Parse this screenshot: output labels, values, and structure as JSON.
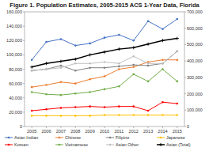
{
  "chart_data": {
    "type": "line",
    "title": "Figure 1. Population Estimates, 2005-2015 ACS 1-Year Data, Florida",
    "x": [
      2005,
      2006,
      2007,
      2008,
      2009,
      2010,
      2011,
      2012,
      2013,
      2014,
      2015
    ],
    "xlim": [
      2004.5,
      2015.5
    ],
    "xticks": [
      2005,
      2006,
      2007,
      2008,
      2009,
      2010,
      2011,
      2012,
      2013,
      2014,
      2015
    ],
    "ylim": [
      0,
      160000
    ],
    "yticks": [
      0,
      {
        "value": 20000,
        "label": "20,000"
      },
      {
        "value": 40000,
        "label": "40,000"
      },
      {
        "value": 60000,
        "label": "60,000"
      },
      {
        "value": 80000,
        "label": "80,000"
      },
      {
        "value": 100000,
        "label": "100,000"
      },
      {
        "value": 120000,
        "label": "120,000"
      },
      {
        "value": 140000,
        "label": "140,000"
      },
      {
        "value": 160000,
        "label": "160,000"
      }
    ],
    "y2lim": [
      0,
      700000
    ],
    "y2ticks": [
      0,
      {
        "value": 100000,
        "label": "100,000"
      },
      {
        "value": 200000,
        "label": "200,000"
      },
      {
        "value": 300000,
        "label": "300,000"
      },
      {
        "value": 400000,
        "label": "400,000"
      },
      {
        "value": 500000,
        "label": "500,000"
      },
      {
        "value": 600000,
        "label": "600,000"
      },
      {
        "value": 700000,
        "label": "700,000"
      }
    ],
    "grid": false,
    "legend": "bottom",
    "series": [
      {
        "name": "Asian Indian",
        "color": "#4472C4",
        "marker": "point",
        "values": [
          93000,
          118000,
          122000,
          113000,
          116000,
          124000,
          128000,
          120000,
          147000,
          136000,
          150000
        ]
      },
      {
        "name": "Chinese",
        "color": "#ED7D31",
        "marker": "point",
        "values": [
          55000,
          58000,
          62000,
          60000,
          66000,
          70000,
          80000,
          83000,
          90000,
          93000,
          93000
        ]
      },
      {
        "name": "Filipino",
        "color": "#808080",
        "marker": "point",
        "values": [
          78000,
          80000,
          85000,
          78000,
          82000,
          82000,
          84000,
          86000,
          85000,
          88000,
          105000
        ]
      },
      {
        "name": "Japanese",
        "color": "#FFC000",
        "marker": "point",
        "values": [
          15000,
          15000,
          15000,
          15000,
          15000,
          16000,
          16000,
          16000,
          16000,
          16000,
          16000
        ]
      },
      {
        "name": "Korean",
        "color": "#FF0000",
        "marker": "point",
        "values": [
          22000,
          24000,
          26000,
          27000,
          28000,
          27000,
          28000,
          28000,
          22000,
          34000,
          32000
        ]
      },
      {
        "name": "Vietnamese",
        "color": "#70AD47",
        "marker": "point",
        "values": [
          48000,
          45000,
          44000,
          46000,
          48000,
          52000,
          56000,
          73000,
          63000,
          80000,
          63000
        ]
      },
      {
        "name": "Asian Other",
        "color": "#BFBFBF",
        "marker": "point",
        "values": [
          78000,
          80000,
          82000,
          88000,
          88000,
          90000,
          88000,
          98000,
          88000,
          88000,
          105000
        ]
      },
      {
        "name": "Asian (Total)",
        "color": "#000000",
        "marker": "plus",
        "values": [
          83000,
          88000,
          91000,
          94000,
          100000,
          104000,
          108000,
          110000,
          115000,
          120000,
          123000
        ]
      }
    ]
  }
}
